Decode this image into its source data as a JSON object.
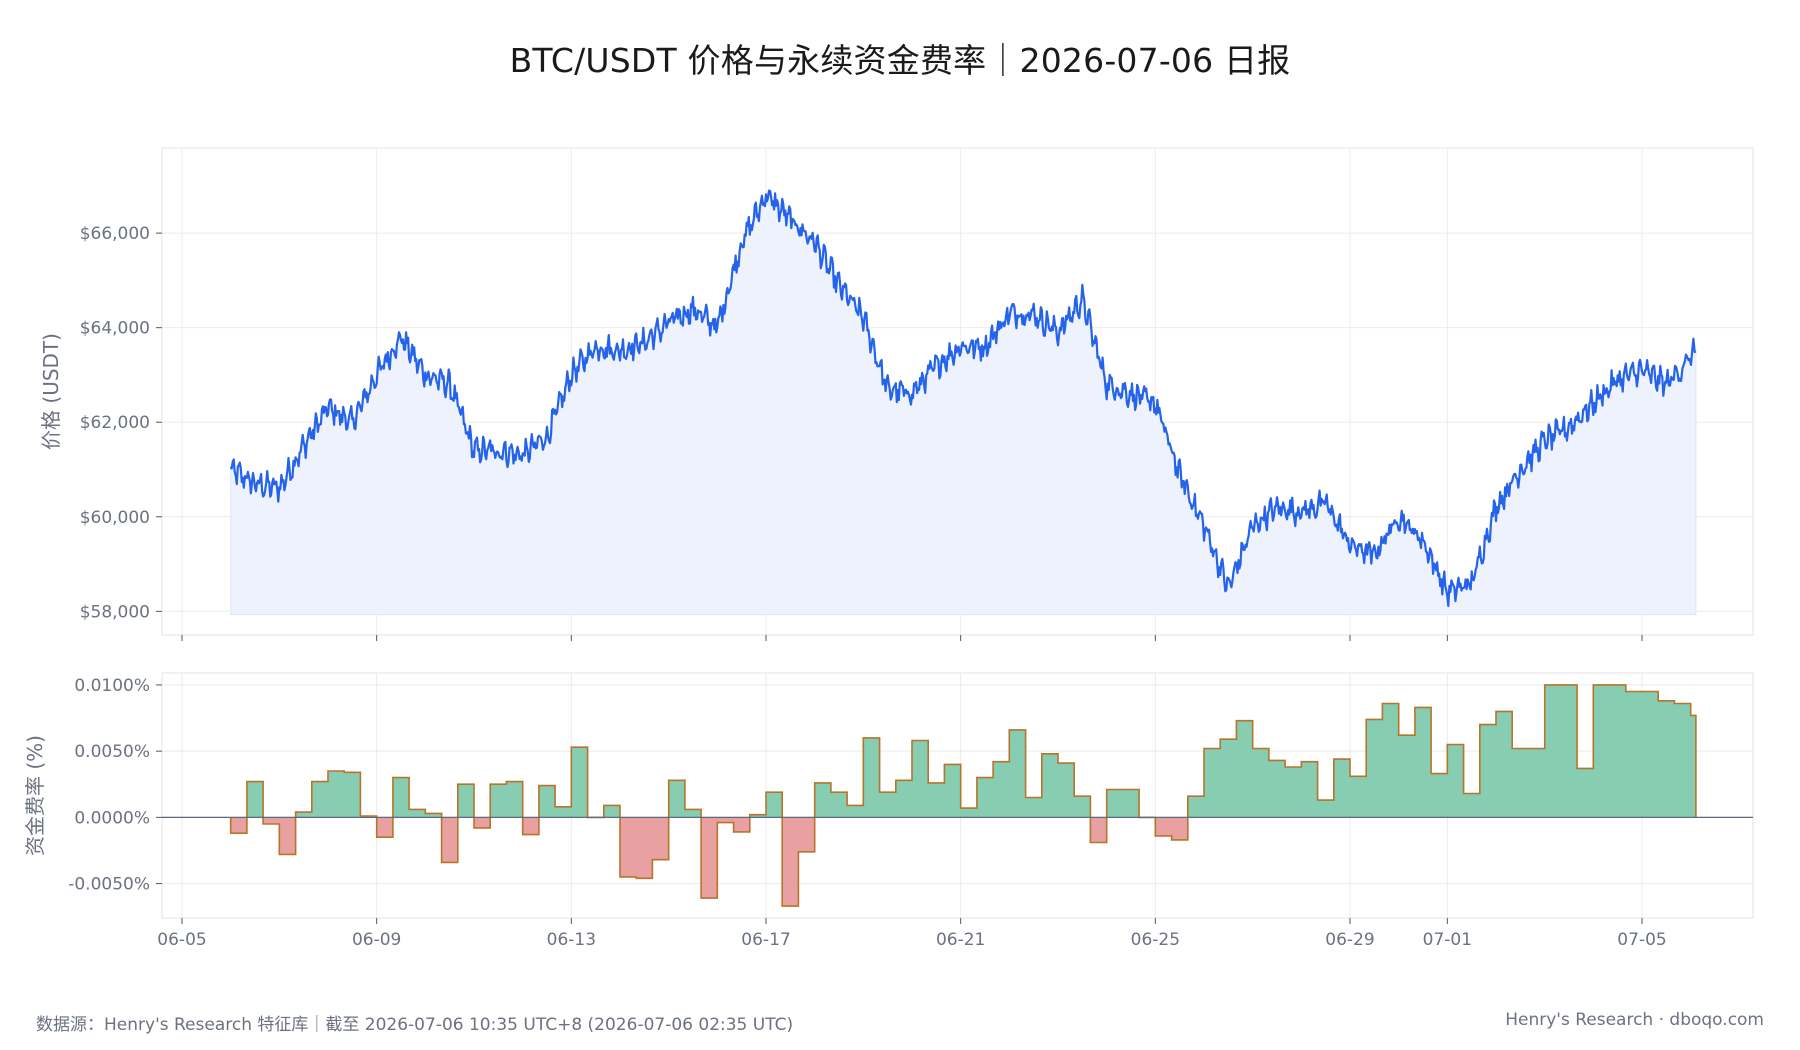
{
  "title": "BTC/USDT 价格与永续资金费率｜2026-07-06 日报",
  "footer": {
    "source": "数据源：Henry's Research 特征库｜截至 2026-07-06 10:35 UTC+8 (2026-07-06 02:35 UTC)",
    "brand": "Henry's Research · dboqo.com"
  },
  "colors": {
    "price_line": "#2563eb",
    "price_fill": "#eef2fc",
    "funding_positive": "#86cdb2",
    "funding_negative": "#e8a0a0",
    "funding_outline": "#b8742a",
    "grid": "#ebebeb",
    "zero_line": "#5b6b7c"
  },
  "chart_data": [
    {
      "type": "line",
      "ylabel": "价格 (USDT)",
      "yticks": [
        "$58,000",
        "$60,000",
        "$62,000",
        "$64,000",
        "$66,000"
      ],
      "ylim": [
        57500,
        67800
      ],
      "xlim": [
        "2026-06-05",
        "2026-07-06"
      ],
      "grid": true,
      "area_fill": true,
      "x": [
        "2026-06-06T00:00",
        "2026-06-06T12:00",
        "2026-06-07T00:00",
        "2026-06-07T12:00",
        "2026-06-08T00:00",
        "2026-06-08T12:00",
        "2026-06-09T00:00",
        "2026-06-09T12:00",
        "2026-06-10T00:00",
        "2026-06-10T12:00",
        "2026-06-11T00:00",
        "2026-06-11T12:00",
        "2026-06-12T00:00",
        "2026-06-12T12:00",
        "2026-06-13T00:00",
        "2026-06-13T12:00",
        "2026-06-14T00:00",
        "2026-06-14T12:00",
        "2026-06-15T00:00",
        "2026-06-15T12:00",
        "2026-06-16T00:00",
        "2026-06-16T12:00",
        "2026-06-17T00:00",
        "2026-06-17T12:00",
        "2026-06-18T00:00",
        "2026-06-18T12:00",
        "2026-06-19T00:00",
        "2026-06-19T12:00",
        "2026-06-20T00:00",
        "2026-06-20T12:00",
        "2026-06-21T00:00",
        "2026-06-21T12:00",
        "2026-06-22T00:00",
        "2026-06-22T12:00",
        "2026-06-23T00:00",
        "2026-06-23T12:00",
        "2026-06-24T00:00",
        "2026-06-24T12:00",
        "2026-06-25T00:00",
        "2026-06-25T12:00",
        "2026-06-26T00:00",
        "2026-06-26T12:00",
        "2026-06-27T00:00",
        "2026-06-27T12:00",
        "2026-06-28T00:00",
        "2026-06-28T12:00",
        "2026-06-29T00:00",
        "2026-06-29T12:00",
        "2026-06-30T00:00",
        "2026-06-30T12:00",
        "2026-07-01T00:00",
        "2026-07-01T12:00",
        "2026-07-02T00:00",
        "2026-07-02T12:00",
        "2026-07-03T00:00",
        "2026-07-03T12:00",
        "2026-07-04T00:00",
        "2026-07-04T12:00",
        "2026-07-05T00:00",
        "2026-07-05T12:00",
        "2026-07-06T02:35"
      ],
      "series": [
        {
          "values": [
            61000,
            60700,
            60600,
            61500,
            62300,
            62000,
            63000,
            63800,
            63000,
            62800,
            61400,
            61400,
            61300,
            61700,
            63000,
            63600,
            63500,
            63700,
            64100,
            64400,
            64000,
            65800,
            66800,
            66300,
            65800,
            64900,
            64200,
            62700,
            62600,
            63200,
            63600,
            63600,
            64300,
            64300,
            63900,
            64600,
            62800,
            62600,
            62400,
            60900,
            59800,
            58500,
            59800,
            60200,
            60100,
            60300,
            59400,
            59200,
            60000,
            59500,
            58400,
            58600,
            60200,
            61000,
            61600,
            61900,
            62400,
            62900,
            63100,
            62800,
            63500
          ]
        }
      ]
    },
    {
      "type": "bar",
      "step": true,
      "ylabel": "资金费率 (%)",
      "yticks": [
        "-0.0050%",
        "0.0000%",
        "0.0050%",
        "0.0100%"
      ],
      "ylim": [
        -0.0076,
        0.0109
      ],
      "grid": true,
      "x": [
        "2026-06-06T00:00",
        "2026-06-06T08:00",
        "2026-06-06T16:00",
        "2026-06-07T00:00",
        "2026-06-07T08:00",
        "2026-06-07T16:00",
        "2026-06-08T00:00",
        "2026-06-08T08:00",
        "2026-06-08T16:00",
        "2026-06-09T00:00",
        "2026-06-09T08:00",
        "2026-06-09T16:00",
        "2026-06-10T00:00",
        "2026-06-10T08:00",
        "2026-06-10T16:00",
        "2026-06-11T00:00",
        "2026-06-11T08:00",
        "2026-06-11T16:00",
        "2026-06-12T00:00",
        "2026-06-12T08:00",
        "2026-06-12T16:00",
        "2026-06-13T00:00",
        "2026-06-13T08:00",
        "2026-06-13T16:00",
        "2026-06-14T00:00",
        "2026-06-14T08:00",
        "2026-06-14T16:00",
        "2026-06-15T00:00",
        "2026-06-15T08:00",
        "2026-06-15T16:00",
        "2026-06-16T00:00",
        "2026-06-16T08:00",
        "2026-06-16T16:00",
        "2026-06-17T00:00",
        "2026-06-17T08:00",
        "2026-06-17T16:00",
        "2026-06-18T00:00",
        "2026-06-18T08:00",
        "2026-06-18T16:00",
        "2026-06-19T00:00",
        "2026-06-19T08:00",
        "2026-06-19T16:00",
        "2026-06-20T00:00",
        "2026-06-20T08:00",
        "2026-06-20T16:00",
        "2026-06-21T00:00",
        "2026-06-21T08:00",
        "2026-06-21T16:00",
        "2026-06-22T00:00",
        "2026-06-22T08:00",
        "2026-06-22T16:00",
        "2026-06-23T00:00",
        "2026-06-23T08:00",
        "2026-06-23T16:00",
        "2026-06-24T00:00",
        "2026-06-24T08:00",
        "2026-06-24T16:00",
        "2026-06-25T00:00",
        "2026-06-25T08:00",
        "2026-06-25T16:00",
        "2026-06-26T00:00",
        "2026-06-26T08:00",
        "2026-06-26T16:00",
        "2026-06-27T00:00",
        "2026-06-27T08:00",
        "2026-06-27T16:00",
        "2026-06-28T00:00",
        "2026-06-28T08:00",
        "2026-06-28T16:00",
        "2026-06-29T00:00",
        "2026-06-29T08:00",
        "2026-06-29T16:00",
        "2026-06-30T00:00",
        "2026-06-30T08:00",
        "2026-06-30T16:00",
        "2026-07-01T00:00",
        "2026-07-01T08:00",
        "2026-07-01T16:00",
        "2026-07-02T00:00",
        "2026-07-02T08:00",
        "2026-07-02T16:00",
        "2026-07-03T00:00",
        "2026-07-03T08:00",
        "2026-07-03T16:00",
        "2026-07-04T00:00",
        "2026-07-04T08:00",
        "2026-07-04T16:00",
        "2026-07-05T00:00",
        "2026-07-05T08:00",
        "2026-07-05T16:00",
        "2026-07-06T00:00"
      ],
      "series": [
        {
          "values": [
            -0.0012,
            0.0027,
            -0.0005,
            -0.0028,
            0.0004,
            0.0027,
            0.0035,
            0.0034,
            0.0001,
            -0.0015,
            0.003,
            0.0006,
            0.0003,
            -0.0034,
            0.0025,
            -0.0008,
            0.0025,
            0.0027,
            -0.0013,
            0.0024,
            0.0008,
            0.0053,
            0.0,
            0.0009,
            -0.0045,
            -0.0046,
            -0.0032,
            0.0028,
            0.0006,
            -0.0061,
            -0.0004,
            -0.0011,
            0.0002,
            0.0019,
            -0.0067,
            -0.0026,
            0.0026,
            0.0019,
            0.0009,
            0.006,
            0.0019,
            0.0028,
            0.0058,
            0.0026,
            0.004,
            0.0007,
            0.003,
            0.0042,
            0.0066,
            0.0015,
            0.0048,
            0.0041,
            0.0016,
            -0.0019,
            0.0021,
            0.0021,
            0.0,
            -0.0014,
            -0.0017,
            0.0016,
            0.0052,
            0.0059,
            0.0073,
            0.0052,
            0.0043,
            0.0038,
            0.0042,
            0.0013,
            0.0044,
            0.0031,
            0.0074,
            0.0086,
            0.0062,
            0.0083,
            0.0033,
            0.0055,
            0.0018,
            0.007,
            0.008,
            0.0052,
            0.0052,
            0.01,
            0.01,
            0.0037,
            0.01,
            0.01,
            0.0095,
            0.0095,
            0.0088,
            0.0086,
            0.0077
          ]
        }
      ]
    }
  ],
  "x_axis": {
    "ticks": [
      {
        "date": "2026-06-05",
        "label": "06-05"
      },
      {
        "date": "2026-06-09",
        "label": "06-09"
      },
      {
        "date": "2026-06-13",
        "label": "06-13"
      },
      {
        "date": "2026-06-17",
        "label": "06-17"
      },
      {
        "date": "2026-06-21",
        "label": "06-21"
      },
      {
        "date": "2026-06-25",
        "label": "06-25"
      },
      {
        "date": "2026-06-29",
        "label": "06-29"
      },
      {
        "date": "2026-07-01",
        "label": "07-01"
      },
      {
        "date": "2026-07-05",
        "label": "07-05"
      }
    ]
  }
}
